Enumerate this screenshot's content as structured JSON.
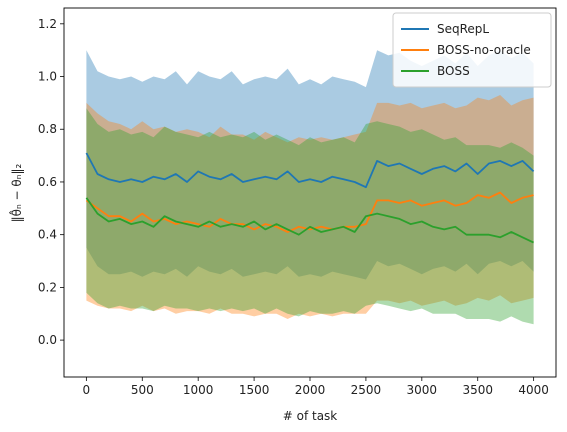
{
  "chart_data": {
    "type": "line",
    "xlabel": "# of task",
    "ylabel": "‖θ̂ₙ − θₙ‖₂",
    "xlim": [
      -200,
      4200
    ],
    "ylim": [
      -0.14,
      1.26
    ],
    "xticks": [
      0,
      500,
      1000,
      1500,
      2000,
      2500,
      3000,
      3500,
      4000
    ],
    "yticks": [
      0.0,
      0.2,
      0.4,
      0.6,
      0.8,
      1.0,
      1.2
    ],
    "ytick_labels": [
      "0.0",
      "0.2",
      "0.4",
      "0.6",
      "0.8",
      "1.0",
      "1.2"
    ],
    "legend_position": "top-right",
    "bands": "shaded min-max range per series",
    "x": [
      0,
      100,
      200,
      300,
      400,
      500,
      600,
      700,
      800,
      900,
      1000,
      1100,
      1200,
      1300,
      1400,
      1500,
      1600,
      1700,
      1800,
      1900,
      2000,
      2100,
      2200,
      2300,
      2400,
      2500,
      2600,
      2700,
      2800,
      2900,
      3000,
      3100,
      3200,
      3300,
      3400,
      3500,
      3600,
      3700,
      3800,
      3900,
      4000
    ],
    "series": [
      {
        "name": "SeqRepL",
        "color": "#1f77b4",
        "values": [
          0.71,
          0.63,
          0.61,
          0.6,
          0.61,
          0.6,
          0.62,
          0.61,
          0.63,
          0.6,
          0.64,
          0.62,
          0.61,
          0.63,
          0.6,
          0.61,
          0.62,
          0.61,
          0.64,
          0.6,
          0.61,
          0.6,
          0.62,
          0.61,
          0.6,
          0.58,
          0.68,
          0.66,
          0.67,
          0.65,
          0.63,
          0.65,
          0.66,
          0.64,
          0.67,
          0.63,
          0.67,
          0.68,
          0.66,
          0.68,
          0.64
        ],
        "lower": [
          0.35,
          0.28,
          0.25,
          0.25,
          0.26,
          0.24,
          0.26,
          0.25,
          0.27,
          0.24,
          0.28,
          0.26,
          0.25,
          0.27,
          0.24,
          0.25,
          0.26,
          0.25,
          0.28,
          0.24,
          0.25,
          0.24,
          0.26,
          0.25,
          0.24,
          0.23,
          0.3,
          0.28,
          0.29,
          0.27,
          0.25,
          0.27,
          0.28,
          0.26,
          0.29,
          0.25,
          0.29,
          0.3,
          0.28,
          0.3,
          0.26
        ],
        "upper": [
          1.1,
          1.02,
          1.0,
          0.99,
          1.0,
          0.98,
          1.0,
          0.99,
          1.02,
          0.97,
          1.02,
          1.0,
          0.99,
          1.02,
          0.97,
          0.99,
          1.0,
          0.99,
          1.03,
          0.97,
          0.99,
          0.97,
          1.0,
          0.99,
          0.98,
          0.96,
          1.1,
          1.08,
          1.09,
          1.06,
          1.04,
          1.06,
          1.08,
          1.05,
          1.09,
          1.04,
          1.08,
          1.1,
          1.07,
          1.09,
          1.05
        ]
      },
      {
        "name": "BOSS-no-oracle",
        "color": "#ff7f0e",
        "values": [
          0.53,
          0.5,
          0.47,
          0.47,
          0.45,
          0.48,
          0.45,
          0.46,
          0.44,
          0.45,
          0.44,
          0.43,
          0.46,
          0.44,
          0.44,
          0.42,
          0.44,
          0.43,
          0.41,
          0.43,
          0.42,
          0.43,
          0.42,
          0.43,
          0.43,
          0.44,
          0.53,
          0.53,
          0.52,
          0.53,
          0.51,
          0.52,
          0.53,
          0.51,
          0.52,
          0.55,
          0.54,
          0.56,
          0.52,
          0.54,
          0.55
        ],
        "lower": [
          0.15,
          0.13,
          0.12,
          0.12,
          0.11,
          0.13,
          0.11,
          0.12,
          0.1,
          0.11,
          0.11,
          0.1,
          0.12,
          0.1,
          0.1,
          0.09,
          0.1,
          0.1,
          0.08,
          0.1,
          0.09,
          0.1,
          0.09,
          0.1,
          0.1,
          0.1,
          0.15,
          0.15,
          0.14,
          0.15,
          0.13,
          0.14,
          0.15,
          0.13,
          0.14,
          0.16,
          0.15,
          0.17,
          0.14,
          0.15,
          0.16
        ],
        "upper": [
          0.9,
          0.86,
          0.83,
          0.82,
          0.8,
          0.83,
          0.8,
          0.81,
          0.79,
          0.8,
          0.79,
          0.77,
          0.81,
          0.78,
          0.78,
          0.76,
          0.79,
          0.77,
          0.75,
          0.77,
          0.76,
          0.77,
          0.76,
          0.77,
          0.78,
          0.79,
          0.9,
          0.9,
          0.89,
          0.9,
          0.88,
          0.89,
          0.9,
          0.88,
          0.89,
          0.92,
          0.91,
          0.93,
          0.89,
          0.91,
          0.92
        ]
      },
      {
        "name": "BOSS",
        "color": "#2ca02c",
        "values": [
          0.54,
          0.48,
          0.45,
          0.46,
          0.44,
          0.45,
          0.43,
          0.47,
          0.45,
          0.44,
          0.43,
          0.45,
          0.43,
          0.44,
          0.43,
          0.45,
          0.42,
          0.44,
          0.42,
          0.4,
          0.43,
          0.41,
          0.42,
          0.43,
          0.41,
          0.47,
          0.48,
          0.47,
          0.46,
          0.44,
          0.45,
          0.43,
          0.42,
          0.43,
          0.4,
          0.4,
          0.4,
          0.39,
          0.41,
          0.39,
          0.37
        ],
        "lower": [
          0.18,
          0.14,
          0.12,
          0.13,
          0.12,
          0.12,
          0.11,
          0.13,
          0.12,
          0.12,
          0.11,
          0.12,
          0.11,
          0.12,
          0.11,
          0.12,
          0.1,
          0.12,
          0.1,
          0.09,
          0.11,
          0.1,
          0.1,
          0.11,
          0.1,
          0.13,
          0.14,
          0.13,
          0.12,
          0.11,
          0.12,
          0.1,
          0.1,
          0.1,
          0.08,
          0.08,
          0.08,
          0.07,
          0.09,
          0.07,
          0.06
        ],
        "upper": [
          0.88,
          0.82,
          0.79,
          0.8,
          0.78,
          0.79,
          0.77,
          0.81,
          0.79,
          0.78,
          0.77,
          0.79,
          0.77,
          0.78,
          0.77,
          0.79,
          0.76,
          0.78,
          0.76,
          0.74,
          0.77,
          0.75,
          0.76,
          0.77,
          0.75,
          0.82,
          0.83,
          0.82,
          0.81,
          0.79,
          0.8,
          0.78,
          0.76,
          0.77,
          0.74,
          0.74,
          0.74,
          0.73,
          0.75,
          0.73,
          0.7
        ]
      }
    ]
  }
}
